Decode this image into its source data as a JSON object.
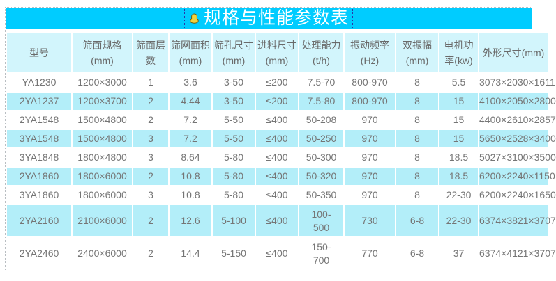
{
  "title": {
    "text": "规格与性能参数表"
  },
  "colors": {
    "title_band": "#00CCFF",
    "title_text": "#FFFFFF",
    "header_bg": "#D2F5FC",
    "alt_row_bg": "#B3EEF9",
    "row_bg": "#FFFFFF",
    "text": "#757575",
    "frame_border_dotted": "#B9BEC2",
    "title_outline_dotted": "#2B35A8"
  },
  "table": {
    "columns": [
      {
        "label": "型号"
      },
      {
        "label": "筛面规格 (mm)"
      },
      {
        "label": "筛面层数"
      },
      {
        "label": "筛网面积 (mm)"
      },
      {
        "label": "筛孔尺寸 (mm)"
      },
      {
        "label": "进料尺寸(mm)"
      },
      {
        "label": "处理能力(t/h)"
      },
      {
        "label": "振动频率 (Hz)"
      },
      {
        "label": "双振幅 (mm)"
      },
      {
        "label": "电机功率(kw)"
      },
      {
        "label": "外形尺寸(mm)"
      }
    ],
    "rows": [
      {
        "cells": [
          "YA1230",
          "1200×3000",
          "1",
          "3.6",
          "3-50",
          "≤200",
          "7.5-70",
          "800-970",
          "8",
          "5.5",
          "3073×2030×1611"
        ]
      },
      {
        "cells": [
          "2YA1237",
          "1200×3700",
          "2",
          "4.44",
          "3-50",
          "≤200",
          "7.5-80",
          "800-970",
          "8",
          "15",
          "4100×2050×2800"
        ]
      },
      {
        "cells": [
          "2YA1548",
          "1500×4800",
          "2",
          "7.2",
          "5-50",
          "≤400",
          "50-208",
          "970",
          "8",
          "15",
          "4400×2610×2857"
        ]
      },
      {
        "cells": [
          "3YA1548",
          "1500×4800",
          "3",
          "7.2",
          "5-50",
          "≤400",
          "50-250",
          "970",
          "8",
          "15",
          "5650×2528×3400"
        ]
      },
      {
        "cells": [
          "3YA1848",
          "1800×4800",
          "3",
          "8.64",
          "5-80",
          "≤400",
          "50-300",
          "970",
          "8",
          "18.5",
          "5027×3100×3500"
        ]
      },
      {
        "cells": [
          "2YA1860",
          "1800×6000",
          "2",
          "10.8",
          "5-80",
          "≤400",
          "50-320",
          "970",
          "8",
          "18.5",
          "6200×2240×1150"
        ]
      },
      {
        "cells": [
          "3YA1860",
          "1800×6000",
          "3",
          "10.8",
          "5-80",
          "≤400",
          "50-350",
          "970",
          "8",
          "22-30",
          "6200×2240×1650"
        ]
      },
      {
        "cells": [
          "2YA2160",
          "2100×6000",
          "2",
          "12.6",
          "5-100",
          "≤400",
          "100-\n500",
          "730",
          "6-8",
          "22-30",
          "6374×3821×3707"
        ]
      },
      {
        "cells": [
          "2YA2460",
          "2400×6000",
          "2",
          "14.4",
          "5-150",
          "≤400",
          "150-\n700",
          "770",
          "6-8",
          "37",
          "6374×4121×3707"
        ]
      }
    ]
  }
}
